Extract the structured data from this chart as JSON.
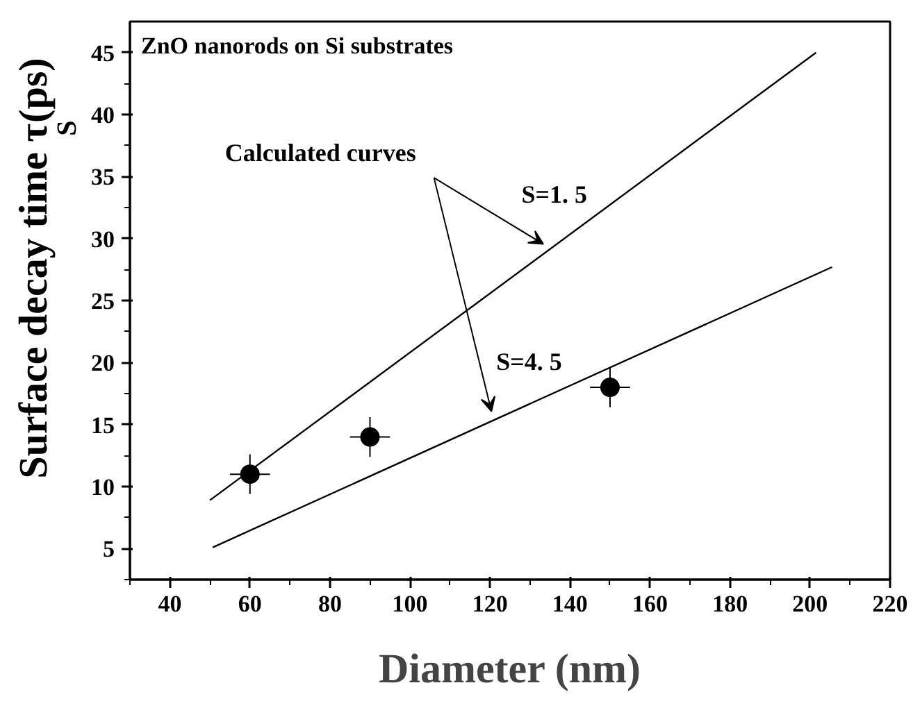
{
  "chart_data": {
    "type": "line",
    "title": "ZnO nanorods on Si  substrates",
    "xlabel": "Diameter (nm)",
    "ylabel": "Surface decay time τ$_{S}$ (ps)",
    "xlim": [
      30,
      220
    ],
    "ylim": [
      2.5,
      47.5
    ],
    "xticks": [
      40,
      60,
      80,
      100,
      120,
      140,
      160,
      180,
      200,
      220
    ],
    "yticks": [
      5,
      10,
      15,
      20,
      25,
      30,
      35,
      40,
      45
    ],
    "grid": false,
    "series": [
      {
        "color": "#000000",
        "x": [
          50,
          201.5
        ],
        "values": [
          8.9,
          45
        ],
        "line_style": "solid",
        "marker": "none"
      },
      {
        "color": "#000000",
        "x": [
          50.7,
          205.5
        ],
        "values": [
          5.1,
          27.7
        ],
        "line_style": "solid",
        "marker": "none"
      },
      {
        "type": "scatter",
        "color": "#000000",
        "x": [
          60,
          90,
          150
        ],
        "values": [
          11,
          14,
          18
        ],
        "marker": "circle",
        "errors": [
          1.6,
          1.6,
          1.6
        ],
        "xerrors": [
          5,
          5,
          5
        ]
      }
    ],
    "annotations": [
      "Calculated curves",
      "S=1. 5",
      "S=4. 5"
    ]
  }
}
